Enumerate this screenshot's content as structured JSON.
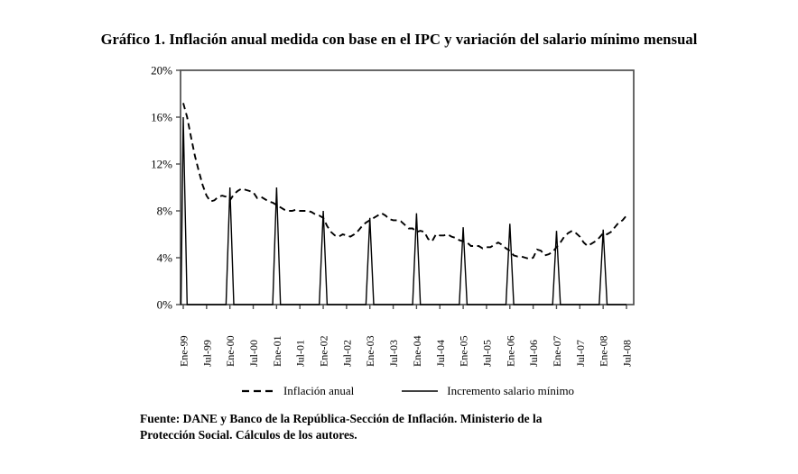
{
  "title": "Gráfico 1. Inflación anual medida con base en el IPC y variación del salario mínimo mensual",
  "legend": {
    "inflacion_label": "Inflación anual",
    "salario_label": "Incremento salario mínimo"
  },
  "source": {
    "line1": "Fuente: DANE y Banco de la República-Sección de Inflación. Ministerio de la",
    "line2": "Protección Social. Cálculos de los autores."
  },
  "colors": {
    "line": "#000000",
    "axis": "#4d4d4d",
    "background": "#ffffff"
  },
  "chart_data": {
    "type": "line",
    "title": "Gráfico 1. Inflación anual medida con base en el IPC y variación del salario mínimo mensual",
    "xlabel": "",
    "ylabel": "",
    "ylim": [
      0,
      20
    ],
    "y_tick_values": [
      0,
      4,
      8,
      12,
      16,
      20
    ],
    "y_tick_labels": [
      "0%",
      "4%",
      "8%",
      "12%",
      "16%",
      "20%"
    ],
    "x_tick_labels": [
      "Ene-99",
      "Jul-99",
      "Ene-00",
      "Jul-00",
      "Ene-01",
      "Jul-01",
      "Ene-02",
      "Jul-02",
      "Ene-03",
      "Jul-03",
      "Ene-04",
      "Jul-04",
      "Ene-05",
      "Jul-05",
      "Ene-06",
      "Jul-06",
      "Ene-07",
      "Jul-07",
      "Ene-08",
      "Jul-08"
    ],
    "x_unit": "month",
    "x_range": [
      "Ene-99",
      "Jul-08"
    ],
    "grid": false,
    "legend_position": "bottom",
    "series": [
      {
        "name": "Inflación anual",
        "style": "dashed",
        "frequency": "monthly",
        "values": [
          17.2,
          16.0,
          14.3,
          12.7,
          11.4,
          10.2,
          9.3,
          8.8,
          8.9,
          9.2,
          9.3,
          9.2,
          8.9,
          9.4,
          9.7,
          9.9,
          9.8,
          9.7,
          9.6,
          9.1,
          9.2,
          9.0,
          8.8,
          8.7,
          8.5,
          8.3,
          8.1,
          8.0,
          8.0,
          8.1,
          8.0,
          8.0,
          8.0,
          7.9,
          7.7,
          7.6,
          7.4,
          6.7,
          6.2,
          5.9,
          5.8,
          6.0,
          5.9,
          5.8,
          6.0,
          6.3,
          6.7,
          7.0,
          7.2,
          7.4,
          7.6,
          7.8,
          7.6,
          7.3,
          7.2,
          7.2,
          7.1,
          6.8,
          6.5,
          6.5,
          6.2,
          6.3,
          6.2,
          5.6,
          5.4,
          6.0,
          5.9,
          5.9,
          6.0,
          5.8,
          5.7,
          5.5,
          5.4,
          5.3,
          5.0,
          5.0,
          5.0,
          4.8,
          4.9,
          4.9,
          5.1,
          5.3,
          5.1,
          4.8,
          4.6,
          4.2,
          4.1,
          4.1,
          4.0,
          3.9,
          4.0,
          4.7,
          4.6,
          4.2,
          4.3,
          4.5,
          4.9,
          5.3,
          5.8,
          6.1,
          6.3,
          6.1,
          5.8,
          5.3,
          5.0,
          5.2,
          5.4,
          5.7,
          6.1,
          6.0,
          6.2,
          6.6,
          7.0,
          7.2,
          7.6
        ]
      },
      {
        "name": "Incremento salario mínimo",
        "style": "solid-spikes",
        "frequency": "annual (spike each January, 0 in other months)",
        "years": [
          "1999",
          "2000",
          "2001",
          "2002",
          "2003",
          "2004",
          "2005",
          "2006",
          "2007",
          "2008"
        ],
        "january_values": [
          16.0,
          10.0,
          10.0,
          8.0,
          7.4,
          7.8,
          6.6,
          6.9,
          6.3,
          6.4
        ]
      }
    ]
  }
}
